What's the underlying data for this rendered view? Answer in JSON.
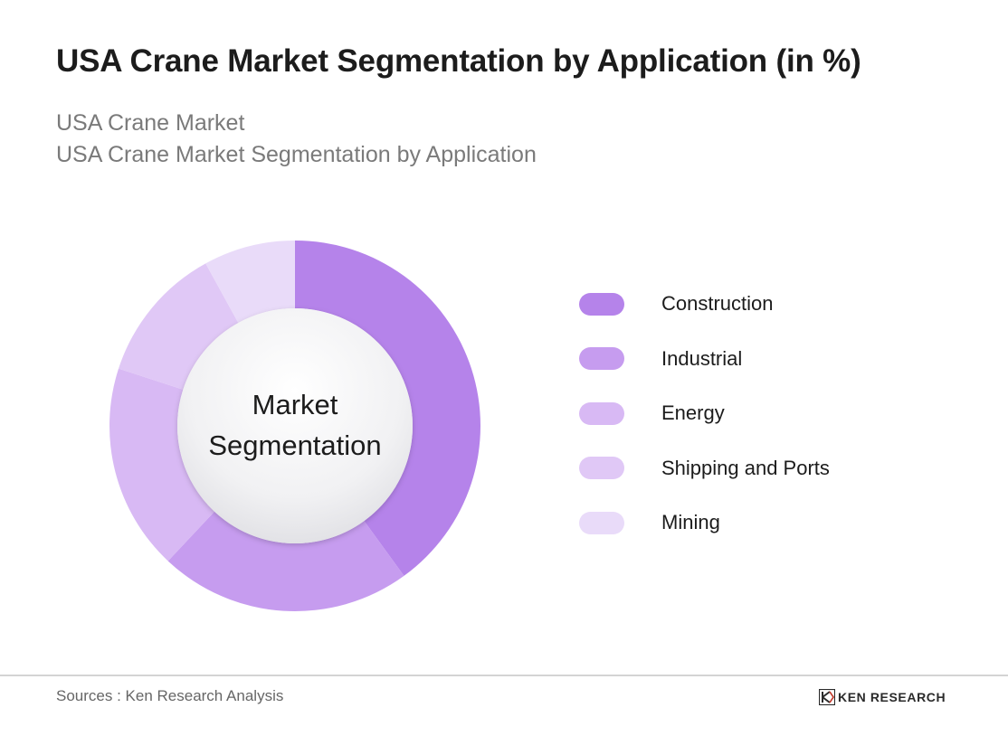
{
  "header": {
    "title": "USA Crane Market Segmentation by Application (in %)",
    "subtitle_line1": "USA Crane Market",
    "subtitle_line2": "USA Crane Market Segmentation by Application"
  },
  "chart_data": {
    "type": "pie",
    "style": "donut",
    "center_label": [
      "Market",
      "Segmentation"
    ],
    "legend_placement": "right",
    "categories": [
      "Construction",
      "Industrial",
      "Energy",
      "Shipping and Ports",
      "Mining"
    ],
    "values": [
      40,
      22,
      18,
      12,
      8
    ],
    "colors": [
      "#b583ea",
      "#c69cef",
      "#d8b9f4",
      "#e0c8f6",
      "#e9dbf9"
    ],
    "title": "",
    "xlabel": "",
    "ylabel": ""
  },
  "footer": {
    "source": "Sources : Ken Research Analysis",
    "logo_text": "KEN RESEARCH",
    "logo_icon": "ken-research-logo-icon"
  }
}
